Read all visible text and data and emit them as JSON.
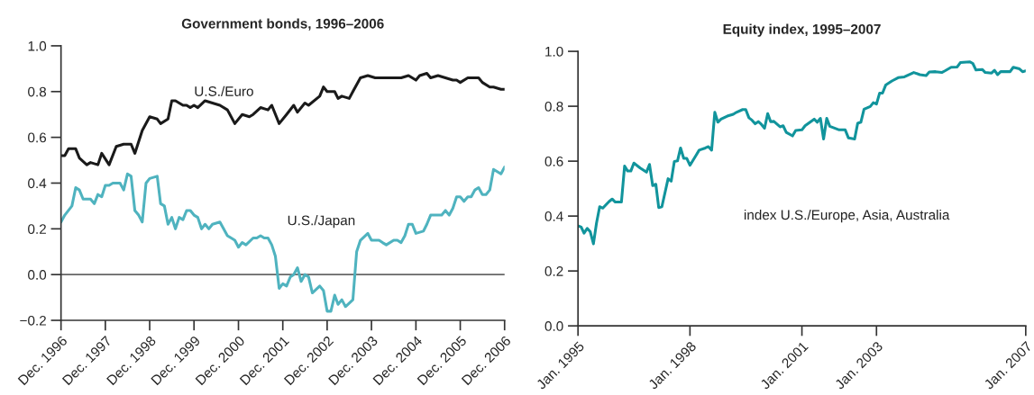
{
  "chart_data": [
    {
      "type": "line",
      "title": "Government bonds, 1996–2006",
      "xlim": [
        "1996-12",
        "2006-12"
      ],
      "ylim": [
        -0.2,
        1.0
      ],
      "xticks": [
        {
          "value": "1996-12",
          "label": "Dec. 1996"
        },
        {
          "value": "1997-12",
          "label": "Dec. 1997"
        },
        {
          "value": "1998-12",
          "label": "Dec. 1998"
        },
        {
          "value": "1999-12",
          "label": "Dec. 1999"
        },
        {
          "value": "2000-12",
          "label": "Dec. 2000"
        },
        {
          "value": "2001-12",
          "label": "Dec. 2001"
        },
        {
          "value": "2002-12",
          "label": "Dec. 2002"
        },
        {
          "value": "2003-12",
          "label": "Dec. 2003"
        },
        {
          "value": "2004-12",
          "label": "Dec. 2004"
        },
        {
          "value": "2005-12",
          "label": "Dec. 2005"
        },
        {
          "value": "2006-12",
          "label": "Dec. 2006"
        }
      ],
      "yticks": [
        {
          "value": -0.2,
          "label": "−0.2"
        },
        {
          "value": 0.0,
          "label": "0.0"
        },
        {
          "value": 0.2,
          "label": "0.2"
        },
        {
          "value": 0.4,
          "label": "0.4"
        },
        {
          "value": 0.6,
          "label": "0.6"
        },
        {
          "value": 0.8,
          "label": "0.8"
        },
        {
          "value": 1.0,
          "label": "1.0"
        }
      ],
      "ref_lines": [
        {
          "axis": "y",
          "value": 0,
          "color": "#666666"
        }
      ],
      "series": [
        {
          "name": "U.S./Euro",
          "color": "#1a1a1a",
          "x": [
            "1996-12",
            "1997-01",
            "1997-02",
            "1997-04",
            "1997-05",
            "1997-07",
            "1997-08",
            "1997-10",
            "1997-11",
            "1998-01",
            "1998-03",
            "1998-05",
            "1998-07",
            "1998-08",
            "1998-10",
            "1998-12",
            "1999-02",
            "1999-03",
            "1999-05",
            "1999-06",
            "1999-07",
            "1999-09",
            "1999-10",
            "1999-11",
            "1999-12",
            "2000-01",
            "2000-03",
            "2000-05",
            "2000-07",
            "2000-09",
            "2000-11",
            "2001-01",
            "2001-03",
            "2001-04",
            "2001-06",
            "2001-08",
            "2001-09",
            "2001-11",
            "2002-01",
            "2002-03",
            "2002-04",
            "2002-06",
            "2002-07",
            "2002-10",
            "2002-11",
            "2002-12",
            "2003-02",
            "2003-03",
            "2003-04",
            "2003-06",
            "2003-07",
            "2003-09",
            "2003-11",
            "2004-01",
            "2004-03",
            "2004-06",
            "2004-08",
            "2004-10",
            "2004-12",
            "2005-01",
            "2005-03",
            "2005-04",
            "2005-06",
            "2005-08",
            "2005-10",
            "2005-11",
            "2005-12",
            "2006-02",
            "2006-05",
            "2006-06",
            "2006-08",
            "2006-09",
            "2006-11",
            "2006-12"
          ],
          "values": [
            0.52,
            0.52,
            0.55,
            0.55,
            0.51,
            0.48,
            0.49,
            0.48,
            0.53,
            0.48,
            0.56,
            0.57,
            0.57,
            0.53,
            0.63,
            0.69,
            0.68,
            0.66,
            0.68,
            0.76,
            0.76,
            0.74,
            0.74,
            0.73,
            0.74,
            0.73,
            0.76,
            0.75,
            0.74,
            0.72,
            0.66,
            0.7,
            0.69,
            0.7,
            0.73,
            0.72,
            0.74,
            0.66,
            0.7,
            0.74,
            0.71,
            0.75,
            0.74,
            0.78,
            0.82,
            0.8,
            0.8,
            0.77,
            0.78,
            0.77,
            0.8,
            0.86,
            0.87,
            0.86,
            0.86,
            0.86,
            0.86,
            0.87,
            0.85,
            0.87,
            0.88,
            0.86,
            0.87,
            0.86,
            0.85,
            0.85,
            0.84,
            0.86,
            0.86,
            0.84,
            0.82,
            0.82,
            0.81,
            0.81
          ]
        },
        {
          "name": "U.S./Japan",
          "color": "#4fb3bf",
          "x": [
            "1996-12",
            "1997-01",
            "1997-03",
            "1997-04",
            "1997-05",
            "1997-06",
            "1997-07",
            "1997-08",
            "1997-09",
            "1997-10",
            "1997-11",
            "1997-12",
            "1998-01",
            "1998-02",
            "1998-04",
            "1998-05",
            "1998-06",
            "1998-07",
            "1998-08",
            "1998-09",
            "1998-10",
            "1998-11",
            "1998-12",
            "1999-02",
            "1999-03",
            "1999-04",
            "1999-05",
            "1999-06",
            "1999-07",
            "1999-08",
            "1999-09",
            "1999-10",
            "1999-11",
            "1999-12",
            "2000-01",
            "2000-02",
            "2000-03",
            "2000-04",
            "2000-05",
            "2000-07",
            "2000-09",
            "2000-11",
            "2000-12",
            "2001-01",
            "2001-02",
            "2001-04",
            "2001-05",
            "2001-06",
            "2001-07",
            "2001-08",
            "2001-09",
            "2001-10",
            "2001-11",
            "2001-12",
            "2002-01",
            "2002-02",
            "2002-03",
            "2002-04",
            "2002-05",
            "2002-06",
            "2002-07",
            "2002-08",
            "2002-10",
            "2002-11",
            "2002-12",
            "2003-01",
            "2003-02",
            "2003-03",
            "2003-04",
            "2003-05",
            "2003-07",
            "2003-08",
            "2003-09",
            "2003-11",
            "2003-12",
            "2004-02",
            "2004-03",
            "2004-04",
            "2004-06",
            "2004-07",
            "2004-08",
            "2004-09",
            "2004-10",
            "2004-11",
            "2004-12",
            "2005-02",
            "2005-03",
            "2005-04",
            "2005-05",
            "2005-07",
            "2005-08",
            "2005-09",
            "2005-10",
            "2005-11",
            "2005-12",
            "2006-01",
            "2006-02",
            "2006-03",
            "2006-04",
            "2006-05",
            "2006-06",
            "2006-07",
            "2006-08",
            "2006-09",
            "2006-11",
            "2006-12"
          ],
          "values": [
            0.23,
            0.26,
            0.3,
            0.38,
            0.37,
            0.33,
            0.33,
            0.33,
            0.31,
            0.35,
            0.34,
            0.39,
            0.39,
            0.4,
            0.4,
            0.37,
            0.44,
            0.43,
            0.28,
            0.26,
            0.23,
            0.4,
            0.42,
            0.43,
            0.31,
            0.3,
            0.22,
            0.25,
            0.2,
            0.25,
            0.24,
            0.28,
            0.28,
            0.26,
            0.25,
            0.2,
            0.22,
            0.2,
            0.22,
            0.23,
            0.17,
            0.15,
            0.12,
            0.14,
            0.13,
            0.16,
            0.16,
            0.17,
            0.16,
            0.16,
            0.13,
            0.08,
            -0.06,
            -0.04,
            -0.05,
            -0.01,
            0.0,
            0.03,
            -0.03,
            0.0,
            -0.01,
            -0.08,
            -0.05,
            -0.07,
            -0.16,
            -0.16,
            -0.09,
            -0.13,
            -0.11,
            -0.14,
            -0.11,
            0.1,
            0.15,
            0.18,
            0.15,
            0.15,
            0.14,
            0.13,
            0.15,
            0.15,
            0.14,
            0.17,
            0.22,
            0.22,
            0.18,
            0.19,
            0.22,
            0.26,
            0.26,
            0.26,
            0.28,
            0.26,
            0.29,
            0.34,
            0.34,
            0.32,
            0.34,
            0.34,
            0.37,
            0.38,
            0.35,
            0.35,
            0.37,
            0.46,
            0.44,
            0.47
          ]
        }
      ]
    },
    {
      "type": "line",
      "title": "Equity index, 1995–2007",
      "xlim": [
        "1995-01",
        "2007-01"
      ],
      "ylim": [
        0.0,
        1.0
      ],
      "xticks": [
        {
          "value": "1995-01",
          "label": "Jan. 1995"
        },
        {
          "value": "1998-01",
          "label": "Jan. 1998"
        },
        {
          "value": "2001-01",
          "label": "Jan. 2001"
        },
        {
          "value": "2003-01",
          "label": "Jan. 2003"
        },
        {
          "value": "2007-01",
          "label": "Jan. 2007"
        }
      ],
      "yticks": [
        {
          "value": 0.0,
          "label": "0.0"
        },
        {
          "value": 0.2,
          "label": "0.2"
        },
        {
          "value": 0.4,
          "label": "0.4"
        },
        {
          "value": 0.6,
          "label": "0.6"
        },
        {
          "value": 0.8,
          "label": "0.8"
        },
        {
          "value": 1.0,
          "label": "1.0"
        }
      ],
      "series": [
        {
          "name": "index U.S./Europe, Asia, Australia",
          "color": "#11949c",
          "x": [
            "1995-01",
            "1995-02",
            "1995-03",
            "1995-04",
            "1995-05",
            "1995-06",
            "1995-07",
            "1995-08",
            "1995-09",
            "1995-11",
            "1995-12",
            "1996-01",
            "1996-03",
            "1996-04",
            "1996-05",
            "1996-06",
            "1996-07",
            "1996-09",
            "1996-11",
            "1996-12",
            "1997-01",
            "1997-02",
            "1997-03",
            "1997-04",
            "1997-06",
            "1997-07",
            "1997-08",
            "1997-09",
            "1997-10",
            "1997-11",
            "1997-12",
            "1998-01",
            "1998-03",
            "1998-04",
            "1998-06",
            "1998-07",
            "1998-08",
            "1998-09",
            "1998-10",
            "1998-11",
            "1999-01",
            "1999-03",
            "1999-04",
            "1999-06",
            "1999-07",
            "1999-08",
            "1999-09",
            "1999-10",
            "1999-11",
            "1999-12",
            "2000-01",
            "2000-02",
            "2000-03",
            "2000-04",
            "2000-06",
            "2000-07",
            "2000-08",
            "2000-10",
            "2000-11",
            "2001-01",
            "2001-02",
            "2001-05",
            "2001-06",
            "2001-07",
            "2001-08",
            "2001-09",
            "2001-10",
            "2002-01",
            "2002-03",
            "2002-04",
            "2002-06",
            "2002-07",
            "2002-08",
            "2002-09",
            "2002-11",
            "2002-12",
            "2003-01",
            "2003-02",
            "2003-03",
            "2003-04",
            "2003-06",
            "2003-08",
            "2003-10",
            "2004-01",
            "2004-03",
            "2004-05",
            "2004-06",
            "2004-08",
            "2004-10",
            "2004-11",
            "2005-01",
            "2005-03",
            "2005-04",
            "2005-07",
            "2005-08",
            "2005-09",
            "2005-11",
            "2005-12",
            "2006-02",
            "2006-03",
            "2006-04",
            "2006-05",
            "2006-08",
            "2006-09",
            "2006-11",
            "2006-12",
            "2007-01"
          ],
          "values": [
            0.365,
            0.36,
            0.338,
            0.355,
            0.343,
            0.299,
            0.374,
            0.434,
            0.429,
            0.453,
            0.462,
            0.451,
            0.451,
            0.582,
            0.564,
            0.564,
            0.593,
            0.575,
            0.56,
            0.588,
            0.511,
            0.516,
            0.431,
            0.434,
            0.536,
            0.527,
            0.599,
            0.601,
            0.648,
            0.61,
            0.61,
            0.585,
            0.621,
            0.64,
            0.648,
            0.653,
            0.64,
            0.778,
            0.742,
            0.753,
            0.764,
            0.771,
            0.778,
            0.788,
            0.788,
            0.758,
            0.749,
            0.736,
            0.744,
            0.734,
            0.72,
            0.773,
            0.744,
            0.745,
            0.725,
            0.729,
            0.705,
            0.692,
            0.712,
            0.714,
            0.729,
            0.753,
            0.742,
            0.756,
            0.681,
            0.756,
            0.727,
            0.714,
            0.714,
            0.685,
            0.681,
            0.738,
            0.742,
            0.789,
            0.799,
            0.813,
            0.808,
            0.848,
            0.848,
            0.877,
            0.892,
            0.904,
            0.907,
            0.923,
            0.915,
            0.912,
            0.925,
            0.926,
            0.923,
            0.929,
            0.942,
            0.943,
            0.959,
            0.962,
            0.956,
            0.932,
            0.934,
            0.923,
            0.921,
            0.931,
            0.915,
            0.926,
            0.926,
            0.942,
            0.936,
            0.926,
            0.929
          ]
        }
      ]
    }
  ]
}
